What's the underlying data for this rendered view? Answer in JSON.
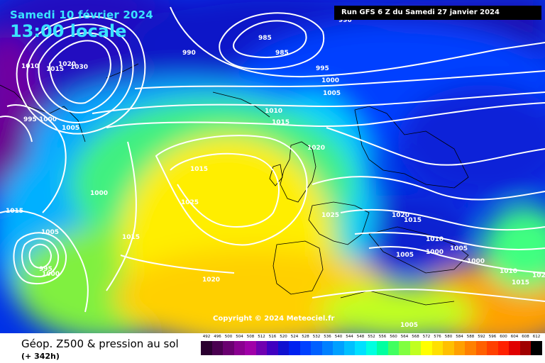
{
  "header": {
    "date": "Samedi 10 février 2024",
    "time": "13:00 locale",
    "run": "Run GFS 6 Z du Samedi 27 janvier 2024"
  },
  "copyright": "Copyright © 2024 Meteociel.fr",
  "legend": {
    "title": "Géop. Z500 & pression au sol",
    "subtitle": "(+ 342h)",
    "scale_labels": [
      "492",
      "496",
      "500",
      "504",
      "508",
      "512",
      "516",
      "520",
      "524",
      "528",
      "532",
      "536",
      "540",
      "544",
      "548",
      "552",
      "556",
      "560",
      "564",
      "568",
      "572",
      "576",
      "580",
      "584",
      "588",
      "592",
      "596",
      "600",
      "604",
      "608",
      "612"
    ],
    "scale_colors": [
      "#2a0030",
      "#4a0050",
      "#6a0070",
      "#8a0090",
      "#a000a8",
      "#7000b0",
      "#4000c0",
      "#1010d0",
      "#0020f0",
      "#0040ff",
      "#0060ff",
      "#0080ff",
      "#00a0ff",
      "#00c0ff",
      "#00e0ff",
      "#00ffe0",
      "#00ffa0",
      "#40ff60",
      "#80ff40",
      "#c0ff20",
      "#ffff00",
      "#ffe000",
      "#ffc000",
      "#ffa000",
      "#ff8000",
      "#ff6000",
      "#ff4000",
      "#ff2000",
      "#e00000",
      "#a00000",
      "#000000"
    ]
  },
  "isobars": [
    {
      "text": "990"
    },
    {
      "text": "985"
    },
    {
      "text": "985"
    },
    {
      "text": "990"
    },
    {
      "text": "1010"
    },
    {
      "text": "1015"
    },
    {
      "text": "1020"
    },
    {
      "text": "1030"
    },
    {
      "text": "995"
    },
    {
      "text": "1000"
    },
    {
      "text": "1005"
    },
    {
      "text": "995"
    },
    {
      "text": "1000"
    },
    {
      "text": "1005"
    },
    {
      "text": "1010"
    },
    {
      "text": "1015"
    },
    {
      "text": "1020"
    },
    {
      "text": "1015"
    },
    {
      "text": "1000"
    },
    {
      "text": "1025"
    },
    {
      "text": "1015"
    },
    {
      "text": "1015"
    },
    {
      "text": "1005"
    },
    {
      "text": "995"
    },
    {
      "text": "1000"
    },
    {
      "text": "1020"
    },
    {
      "text": "1025"
    },
    {
      "text": "1020"
    },
    {
      "text": "1015"
    },
    {
      "text": "1010"
    },
    {
      "text": "1005"
    },
    {
      "text": "1000"
    },
    {
      "text": "1005"
    },
    {
      "text": "1000"
    },
    {
      "text": "1010"
    },
    {
      "text": "1015"
    },
    {
      "text": "1005"
    },
    {
      "text": "1020"
    }
  ]
}
